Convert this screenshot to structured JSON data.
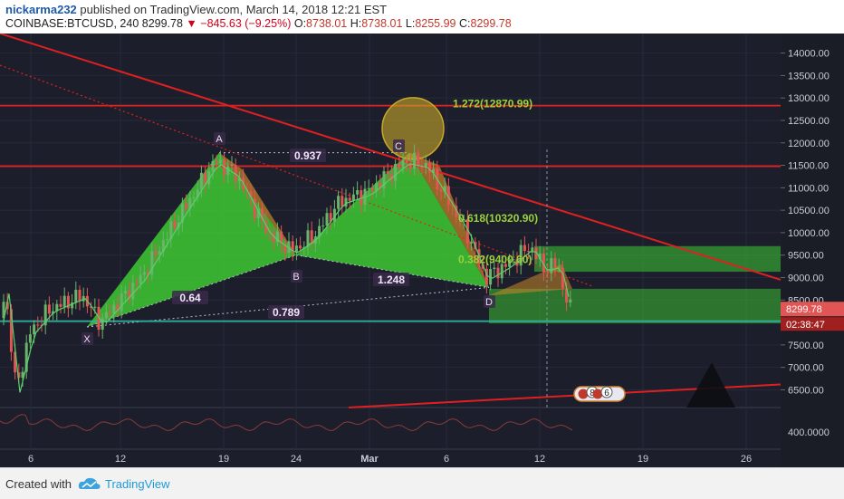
{
  "header": {
    "publisher": "nickarma232",
    "published_text": "published on TradingView.com, March 14, 2018 12:21 EST",
    "symbol": "COINBASE:BTCUSD, 240",
    "last": "8299.78",
    "change": "−845.63 (−9.25%)",
    "o_label": "O:",
    "o": "8738.01",
    "h_label": "H:",
    "h": "8738.01",
    "l_label": "L:",
    "l": "8255.99",
    "c_label": "C:",
    "c": "8299.78"
  },
  "footer": {
    "created_with": "Created with",
    "brand": "TradingView"
  },
  "colors": {
    "background": "#1c1f2b",
    "bull": "#6bb36b",
    "bear": "#e25555",
    "pattern_green": "#3ec934",
    "pattern_orange": "#c8862a",
    "resistance": "#e02020",
    "support": "#2bb3a0",
    "fib_text": "#9bd13a"
  },
  "chart_data": {
    "type": "candlestick",
    "y_ticks": [
      6500,
      7000,
      7500,
      8000,
      8500,
      9000,
      9500,
      10000,
      10500,
      11000,
      11500,
      12000,
      12500,
      13000,
      13500,
      14000
    ],
    "y_tick_labels": [
      "6500.00",
      "7000.00",
      "7500.00",
      "8000.00",
      "8500.00",
      "9000.00",
      "9500.00",
      "10000.00",
      "10500.00",
      "11000.00",
      "11500.00",
      "12000.00",
      "12500.00",
      "13000.00",
      "13500.00",
      "14000.00"
    ],
    "indicator_tick_label": "400.0000",
    "x_tick_labels": [
      "6",
      "12",
      "19",
      "24",
      "Mar",
      "6",
      "12",
      "19",
      "26"
    ],
    "last_price_label": "8299.78",
    "countdown_label": "02:38:47",
    "pattern_points": [
      {
        "label": "X",
        "price": 7900
      },
      {
        "label": "A",
        "price": 11780
      },
      {
        "label": "B",
        "price": 9500
      },
      {
        "label": "C",
        "price": 11780
      },
      {
        "label": "D",
        "price": 8780
      }
    ],
    "ratios": [
      "0.937",
      "0.64",
      "0.789",
      "1.248"
    ],
    "fib_levels": [
      {
        "text": "1.272(12870.99)",
        "price": 12870.99
      },
      {
        "text": "0.618(10320.90)",
        "price": 10320.9
      },
      {
        "text": "0.382(9400.60)",
        "price": 9400.6
      }
    ],
    "horizontal_levels": [
      12830,
      11480,
      8030
    ],
    "event_badges": [
      "8",
      "6"
    ]
  }
}
